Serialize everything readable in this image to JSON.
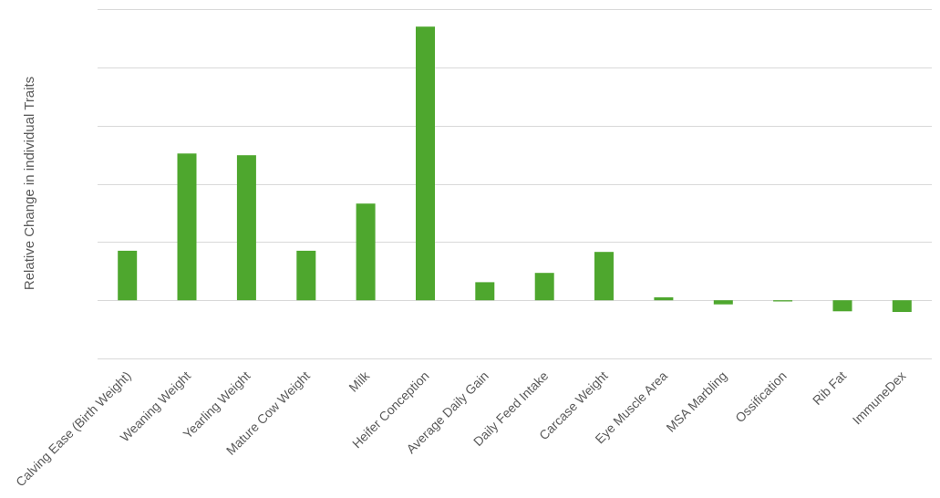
{
  "chart_data": {
    "type": "bar",
    "title": "",
    "xlabel": "",
    "ylabel": "Relative Change in individual Traits",
    "categories": [
      "Calving Ease (Birth Weight)",
      "Weaning Weight",
      "Yearling Weight",
      "Mature Cow Weight",
      "Milk",
      "Heifer Conception",
      "Average Daily Gain",
      "Daily Feed Intake",
      "Carcase Weight",
      "Eye Muscle Area",
      "MSA Marbling",
      "Ossification",
      "Rib Fat",
      "ImmuneDex"
    ],
    "values": [
      0.85,
      2.52,
      2.49,
      0.85,
      1.66,
      4.7,
      0.31,
      0.47,
      0.83,
      0.05,
      -0.07,
      -0.02,
      -0.19,
      -0.2
    ],
    "ylim": [
      -1,
      5
    ],
    "y_tick_labels_shown": false,
    "grid": true,
    "legend": "none",
    "bar_color": "#4ea72e"
  }
}
